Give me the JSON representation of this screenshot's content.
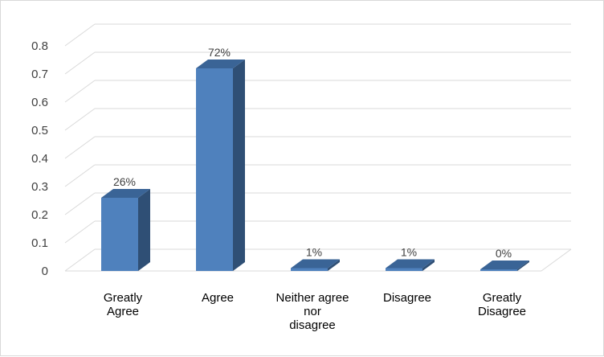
{
  "chart_data": {
    "type": "bar",
    "three_d": true,
    "categories": [
      "Greatly Agree",
      "Agree",
      "Neither agree nor disagree",
      "Disagree",
      "Greatly Disagree"
    ],
    "category_label_lines": [
      [
        "Greatly",
        "Agree"
      ],
      [
        "Agree"
      ],
      [
        "Neither agree",
        "nor",
        "disagree"
      ],
      [
        "Disagree"
      ],
      [
        "Greatly",
        "Disagree"
      ]
    ],
    "values": [
      0.26,
      0.72,
      0.01,
      0.01,
      0.0
    ],
    "data_labels": [
      "26%",
      "72%",
      "1%",
      "1%",
      "0%"
    ],
    "y_ticks": [
      "0",
      "0.1",
      "0.2",
      "0.3",
      "0.4",
      "0.5",
      "0.6",
      "0.7",
      "0.8"
    ],
    "ylim": [
      0,
      0.8
    ],
    "grid": true,
    "legend": "none",
    "title": "",
    "xlabel": "",
    "ylabel": "",
    "colors": {
      "bar_front": "#4f81bd",
      "bar_side": "#2f4f75",
      "bar_top": "#3a6496",
      "grid": "#d9d9d9"
    }
  }
}
